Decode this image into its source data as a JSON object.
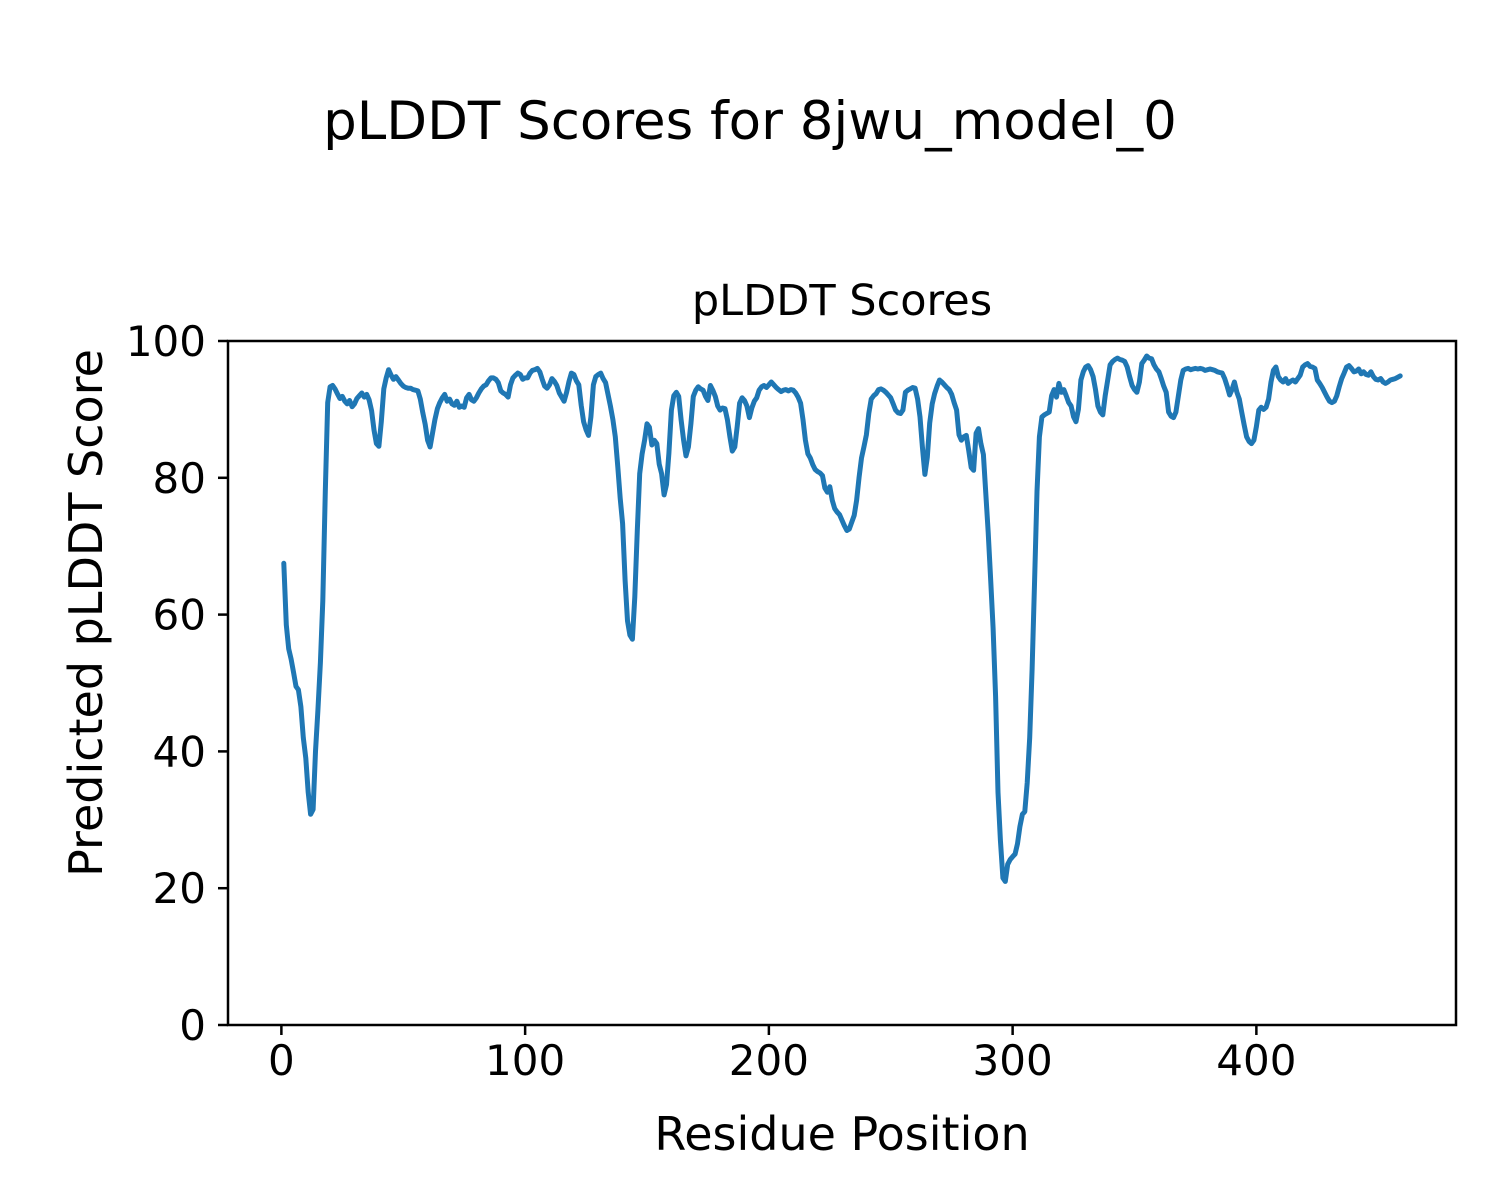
{
  "figure": {
    "suptitle": "pLDDT Scores for 8jwu_model_0",
    "background_color": "#ffffff",
    "text_color": "#000000"
  },
  "chart_data": {
    "type": "line",
    "title": "pLDDT Scores",
    "xlabel": "Residue Position",
    "ylabel": "Predicted pLDDT Score",
    "xlim": [
      -21.9,
      481.9
    ],
    "ylim": [
      0,
      100
    ],
    "xticks": [
      0,
      100,
      200,
      300,
      400
    ],
    "yticks": [
      0,
      20,
      40,
      60,
      80,
      100
    ],
    "grid": false,
    "legend": null,
    "line_color": "#1f77b4",
    "line_width": 5,
    "frame_color": "#000000",
    "series": [
      {
        "name": "pLDDT",
        "x_start": 1,
        "x_step": 1,
        "values": [
          67.5,
          58.5,
          55.0,
          53.5,
          51.5,
          49.5,
          49.0,
          46.5,
          42.0,
          39.0,
          34.0,
          30.8,
          31.5,
          40.0,
          46.0,
          53.0,
          62.0,
          78.0,
          91.0,
          93.3,
          93.5,
          93.0,
          92.3,
          91.6,
          91.9,
          91.2,
          90.8,
          91.3,
          90.4,
          90.8,
          91.6,
          92.0,
          92.4,
          91.8,
          92.2,
          91.4,
          89.8,
          87.0,
          85.0,
          84.6,
          88.2,
          93.0,
          94.6,
          95.8,
          95.0,
          94.4,
          94.8,
          94.3,
          93.8,
          93.4,
          93.2,
          93.1,
          93.1,
          92.9,
          92.8,
          92.7,
          91.5,
          89.5,
          87.8,
          85.5,
          84.5,
          86.5,
          88.5,
          90.1,
          91.0,
          91.7,
          92.2,
          91.2,
          91.5,
          90.8,
          90.6,
          91.2,
          90.3,
          90.5,
          90.3,
          91.7,
          92.2,
          91.4,
          91.2,
          91.7,
          92.4,
          93.0,
          93.4,
          93.6,
          94.2,
          94.6,
          94.6,
          94.4,
          93.9,
          92.7,
          92.4,
          92.2,
          91.8,
          93.6,
          94.6,
          95.0,
          95.3,
          95.1,
          94.4,
          94.6,
          94.6,
          95.3,
          95.7,
          95.8,
          96.0,
          95.5,
          94.4,
          93.4,
          93.1,
          93.6,
          94.5,
          94.1,
          93.5,
          92.4,
          91.8,
          91.2,
          92.5,
          94.1,
          95.3,
          95.1,
          94.2,
          93.6,
          90.6,
          88.2,
          87.0,
          86.2,
          88.9,
          93.6,
          94.8,
          95.1,
          95.3,
          94.5,
          93.9,
          92.2,
          90.5,
          88.5,
          86.0,
          81.6,
          77.0,
          73.3,
          65.0,
          59.1,
          57.0,
          56.4,
          62.6,
          72.3,
          80.6,
          83.5,
          85.5,
          87.9,
          87.4,
          84.8,
          85.5,
          85.0,
          82.0,
          80.6,
          77.5,
          79.0,
          83.6,
          89.9,
          92.0,
          92.5,
          91.9,
          88.5,
          85.5,
          83.2,
          84.5,
          87.9,
          91.9,
          92.8,
          93.3,
          93.0,
          92.8,
          91.9,
          91.3,
          93.5,
          92.8,
          91.9,
          90.5,
          89.9,
          90.2,
          90.1,
          88.5,
          86.0,
          83.9,
          84.5,
          87.5,
          90.9,
          91.7,
          91.3,
          90.5,
          88.8,
          90.2,
          91.2,
          91.7,
          92.8,
          93.3,
          93.5,
          93.2,
          93.6,
          94.0,
          93.6,
          93.2,
          92.9,
          92.6,
          92.8,
          92.9,
          92.7,
          92.9,
          92.8,
          92.4,
          91.8,
          90.9,
          88.5,
          85.5,
          83.5,
          82.9,
          81.9,
          81.2,
          80.9,
          80.7,
          80.3,
          78.5,
          77.9,
          78.7,
          76.7,
          75.5,
          75.0,
          74.6,
          73.8,
          73.0,
          72.3,
          72.5,
          73.5,
          74.5,
          76.7,
          80.1,
          82.9,
          84.5,
          86.3,
          89.4,
          91.5,
          92.0,
          92.3,
          92.9,
          93.0,
          92.8,
          92.5,
          92.1,
          91.7,
          90.8,
          89.9,
          89.5,
          89.4,
          89.9,
          92.5,
          92.8,
          93.0,
          93.2,
          93.1,
          91.5,
          88.9,
          84.5,
          80.5,
          83.0,
          88.0,
          90.8,
          92.3,
          93.4,
          94.3,
          94.0,
          93.6,
          93.2,
          92.9,
          92.2,
          91.0,
          89.9,
          86.3,
          85.5,
          86.0,
          86.2,
          84.0,
          81.5,
          81.1,
          86.5,
          87.2,
          85.0,
          83.4,
          77.7,
          72.0,
          65.0,
          58.0,
          48.0,
          34.0,
          27.0,
          21.5,
          21.0,
          23.5,
          24.2,
          24.6,
          25.0,
          26.5,
          29.0,
          30.8,
          31.2,
          35.4,
          42.0,
          52.0,
          65.0,
          78.0,
          86.0,
          88.9,
          89.2,
          89.4,
          89.6,
          92.0,
          92.9,
          91.8,
          93.8,
          92.5,
          92.9,
          92.0,
          91.0,
          90.5,
          88.9,
          88.2,
          90.0,
          94.3,
          95.5,
          96.2,
          96.4,
          95.8,
          94.8,
          92.9,
          90.5,
          89.6,
          89.2,
          92.0,
          94.3,
          96.5,
          97.0,
          97.3,
          97.5,
          97.3,
          97.2,
          97.0,
          96.2,
          94.8,
          93.5,
          92.9,
          92.5,
          94.0,
          96.7,
          97.2,
          97.8,
          97.5,
          97.4,
          96.5,
          95.9,
          95.5,
          94.5,
          93.4,
          92.5,
          89.6,
          89.0,
          88.8,
          89.6,
          92.0,
          94.3,
          95.7,
          95.9,
          96.0,
          95.8,
          95.9,
          96.0,
          95.9,
          96.0,
          95.9,
          95.7,
          95.8,
          95.9,
          95.8,
          95.7,
          95.5,
          95.4,
          95.3,
          94.5,
          93.4,
          92.1,
          92.9,
          94.0,
          92.5,
          91.5,
          89.6,
          87.7,
          86.0,
          85.3,
          85.0,
          85.5,
          87.5,
          89.9,
          90.3,
          90.0,
          90.3,
          91.5,
          94.0,
          95.7,
          96.2,
          94.8,
          94.3,
          94.0,
          94.5,
          93.8,
          94.1,
          94.3,
          94.0,
          94.5,
          95.0,
          96.2,
          96.5,
          96.7,
          96.3,
          96.2,
          96.0,
          94.3,
          93.8,
          93.2,
          92.5,
          91.8,
          91.2,
          91.0,
          91.2,
          92.0,
          93.3,
          94.5,
          95.3,
          96.2,
          96.4,
          96.0,
          95.5,
          95.6,
          95.9,
          95.2,
          95.5,
          95.1,
          95.0,
          95.5,
          94.8,
          94.4,
          94.3,
          94.5,
          94.0,
          93.8,
          94.0,
          94.3,
          94.4,
          94.5,
          94.7,
          94.9
        ]
      }
    ]
  }
}
